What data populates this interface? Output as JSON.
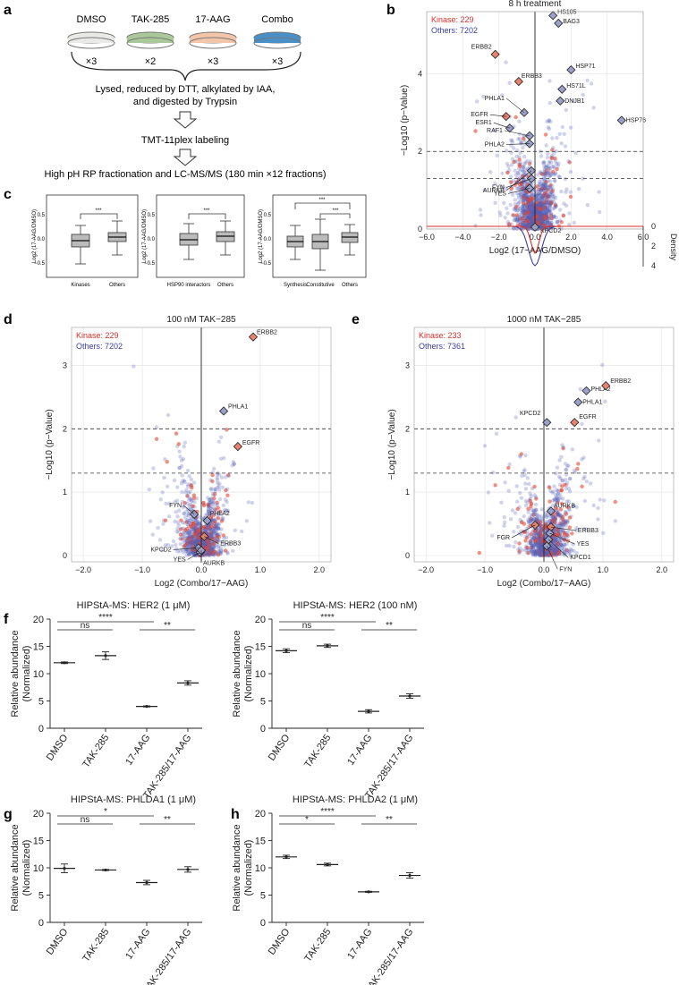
{
  "panel_labels": {
    "a": "a",
    "b": "b",
    "c": "c",
    "d": "d",
    "e": "e",
    "f": "f",
    "g": "g",
    "h": "h"
  },
  "panel_a": {
    "conditions": [
      {
        "name": "DMSO",
        "count": "×3",
        "color": "#e9e9e6"
      },
      {
        "name": "TAK-285",
        "count": "×2",
        "color": "#aac99a"
      },
      {
        "name": "17-AAG",
        "count": "×3",
        "color": "#f2c4a8"
      },
      {
        "name": "Combo",
        "count": "×3",
        "color": "#4a90c8"
      }
    ],
    "step1a": "Lysed, reduced by DTT, alkylated by IAA,",
    "step1b": "and digested by Trypsin",
    "step2": "TMT-11plex labeling",
    "step3": "High pH RP fractionation and LC-MS/MS (180 min ×12 fractions)"
  },
  "panel_c": {
    "ylabel": "Log2 (17-AAG/DMSO)",
    "plots": [
      {
        "categories": [
          "Kinases",
          "Others"
        ],
        "sig": [
          "***"
        ]
      },
      {
        "categories": [
          "HSP90 interactors",
          "Others"
        ],
        "sig": [
          "***"
        ]
      },
      {
        "categories": [
          "Synthesis",
          "Constitutive",
          "Others"
        ],
        "sig": [
          "***",
          "***"
        ]
      }
    ],
    "yticks": [
      "0.5",
      "0.0",
      "−0.5",
      "−1.0"
    ]
  },
  "chart_data": [
    {
      "id": "b",
      "type": "scatter",
      "title": "8 h treatment",
      "xlabel": "Log2 (17−AAG/DMSO)",
      "ylabel": "−Log10 (p−Value)",
      "y2label": "Density",
      "legend": [
        {
          "name": "Kinase: 229",
          "color": "#d8302a"
        },
        {
          "name": "Others: 7202",
          "color": "#3a3fa0"
        }
      ],
      "xlim": [
        -6,
        6
      ],
      "ylim": [
        0,
        5.6
      ],
      "xticks": [
        "−6.0",
        "−4.0",
        "−2.0",
        "0.0",
        "2.0",
        "4.0",
        "6.0"
      ],
      "yticks": [
        "0",
        "2",
        "4"
      ],
      "y2ticks": [
        "0",
        "2",
        "4"
      ],
      "thresholds": [
        2,
        1.3
      ],
      "labeled_points": [
        {
          "label": "HS105",
          "x": 1.0,
          "y": 5.5
        },
        {
          "label": "BAG3",
          "x": 1.3,
          "y": 5.3
        },
        {
          "label": "ERBB2",
          "x": -2.2,
          "y": 4.5
        },
        {
          "label": "HSP71",
          "x": 2.0,
          "y": 4.1
        },
        {
          "label": "HS71L",
          "x": 1.5,
          "y": 3.6
        },
        {
          "label": "DNJB1",
          "x": 1.4,
          "y": 3.3
        },
        {
          "label": "ERBB3",
          "x": -0.9,
          "y": 3.8
        },
        {
          "label": "PHLA1",
          "x": -0.6,
          "y": 3.0
        },
        {
          "label": "EGFR",
          "x": -1.6,
          "y": 2.9
        },
        {
          "label": "HSP76",
          "x": 4.8,
          "y": 2.8
        },
        {
          "label": "ESR1",
          "x": -1.4,
          "y": 2.6
        },
        {
          "label": "RAF1",
          "x": -0.3,
          "y": 2.4
        },
        {
          "label": "PHLA2",
          "x": -0.3,
          "y": 2.2
        },
        {
          "label": "AURKB",
          "x": -0.2,
          "y": 1.5
        },
        {
          "label": "FYN",
          "x": -0.2,
          "y": 1.3
        },
        {
          "label": "YES",
          "x": -0.3,
          "y": 1.05
        },
        {
          "label": "KPCD2",
          "x": 0.0,
          "y": 0.05
        }
      ]
    },
    {
      "id": "d",
      "type": "scatter",
      "title": "100 nM TAK−285",
      "xlabel": "Log2 (Combo/17−AAG)",
      "ylabel": "−Log10 (p−Value)",
      "legend": [
        {
          "name": "Kinase: 229",
          "color": "#d8302a"
        },
        {
          "name": "Others: 7202",
          "color": "#3a3fa0"
        }
      ],
      "xlim": [
        -2.2,
        2.2
      ],
      "ylim": [
        -0.1,
        3.6
      ],
      "xticks": [
        "−2.0",
        "−1.0",
        "0.0",
        "1.0",
        "2.0"
      ],
      "yticks": [
        "0",
        "1",
        "2",
        "3"
      ],
      "thresholds": [
        2,
        1.3
      ],
      "labeled_points": [
        {
          "label": "ERBB2",
          "x": 0.88,
          "y": 3.45
        },
        {
          "label": "PHLA1",
          "x": 0.38,
          "y": 2.28
        },
        {
          "label": "EGFR",
          "x": 0.62,
          "y": 1.72
        },
        {
          "label": "FYN",
          "x": -0.12,
          "y": 0.65
        },
        {
          "label": "PHLA2",
          "x": 0.1,
          "y": 0.55
        },
        {
          "label": "KPCD2",
          "x": -0.05,
          "y": 0.12
        },
        {
          "label": "ERBB3",
          "x": 0.05,
          "y": 0.3
        },
        {
          "label": "YES",
          "x": -0.02,
          "y": 0.05
        },
        {
          "label": "AURKB",
          "x": 0.0,
          "y": 0.08
        }
      ]
    },
    {
      "id": "e",
      "type": "scatter",
      "title": "1000 nM TAK−285",
      "xlabel": "Log2 (Combo/17−AAG)",
      "ylabel": "−Log10 (p−Value)",
      "legend": [
        {
          "name": "Kinase: 233",
          "color": "#d8302a"
        },
        {
          "name": "Others: 7361",
          "color": "#3a3fa0"
        }
      ],
      "xlim": [
        -2.2,
        2.2
      ],
      "ylim": [
        -0.1,
        3.6
      ],
      "xticks": [
        "−2.0",
        "−1.0",
        "0.0",
        "1.0",
        "2.0"
      ],
      "yticks": [
        "0",
        "1",
        "2",
        "3"
      ],
      "thresholds": [
        2,
        1.3
      ],
      "labeled_points": [
        {
          "label": "PHLA2",
          "x": 0.72,
          "y": 2.6
        },
        {
          "label": "ERBB2",
          "x": 1.05,
          "y": 2.68
        },
        {
          "label": "PHLA1",
          "x": 0.58,
          "y": 2.42
        },
        {
          "label": "KPCD2",
          "x": 0.05,
          "y": 2.1
        },
        {
          "label": "EGFR",
          "x": 0.52,
          "y": 2.1
        },
        {
          "label": "AURKB",
          "x": 0.12,
          "y": 0.7
        },
        {
          "label": "ERBB3",
          "x": 0.12,
          "y": 0.45
        },
        {
          "label": "FGR",
          "x": -0.15,
          "y": 0.48
        },
        {
          "label": "YES",
          "x": 0.1,
          "y": 0.35
        },
        {
          "label": "KPCD1",
          "x": 0.08,
          "y": 0.25
        },
        {
          "label": "FYN",
          "x": 0.05,
          "y": 0.15
        }
      ]
    },
    {
      "id": "f1",
      "type": "scatter",
      "title": "HIPStA-MS: HER2 (1 μM)",
      "ylabel": "Relative abundance (Normalized)",
      "categories": [
        "DMSO",
        "TAK-285",
        "17-AAG",
        "TAK-285/17-AAG"
      ],
      "values": [
        12.0,
        13.3,
        4.0,
        8.3
      ],
      "errors": [
        0.15,
        0.7,
        0.1,
        0.4
      ],
      "ylim": [
        0,
        20
      ],
      "yticks": [
        "0",
        "5",
        "10",
        "15",
        "20"
      ],
      "sig": [
        {
          "a": 0,
          "b": 1,
          "t": "ns"
        },
        {
          "a": 0,
          "b": 2,
          "t": "****"
        },
        {
          "a": 2,
          "b": 3,
          "t": "**"
        }
      ]
    },
    {
      "id": "f2",
      "type": "scatter",
      "title": "HIPStA-MS: HER2 (100 nM)",
      "ylabel": "Relative abundance (Normalized)",
      "categories": [
        "DMSO",
        "TAK-285",
        "17-AAG",
        "TAK-285/17-AAG"
      ],
      "values": [
        14.2,
        15.1,
        3.1,
        5.9
      ],
      "errors": [
        0.35,
        0.3,
        0.3,
        0.4
      ],
      "ylim": [
        0,
        20
      ],
      "yticks": [
        "0",
        "5",
        "10",
        "15",
        "20"
      ],
      "sig": [
        {
          "a": 0,
          "b": 1,
          "t": "ns"
        },
        {
          "a": 0,
          "b": 2,
          "t": "****"
        },
        {
          "a": 2,
          "b": 3,
          "t": "**"
        }
      ]
    },
    {
      "id": "g",
      "type": "scatter",
      "title": "HIPStA-MS: PHLDA1 (1 μM)",
      "ylabel": "Relative abundance (Normalized)",
      "categories": [
        "DMSO",
        "TAK-285",
        "17-AAG",
        "TAK-285/17-AAG"
      ],
      "values": [
        9.9,
        9.6,
        7.3,
        9.7
      ],
      "errors": [
        0.8,
        0.1,
        0.4,
        0.5
      ],
      "ylim": [
        0,
        20
      ],
      "yticks": [
        "0",
        "5",
        "10",
        "15",
        "20"
      ],
      "sig": [
        {
          "a": 0,
          "b": 1,
          "t": "ns"
        },
        {
          "a": 0,
          "b": 2,
          "t": "*"
        },
        {
          "a": 2,
          "b": 3,
          "t": "**"
        }
      ]
    },
    {
      "id": "h",
      "type": "scatter",
      "title": "HIPStA-MS: PHLDA2 (1 μM)",
      "ylabel": "Relative abundance (Normalized)",
      "categories": [
        "DMSO",
        "TAK-285",
        "17-AAG",
        "TAK-285/17-AAG"
      ],
      "values": [
        12.0,
        10.6,
        5.6,
        8.6
      ],
      "errors": [
        0.3,
        0.25,
        0.1,
        0.5
      ],
      "ylim": [
        0,
        20
      ],
      "yticks": [
        "0",
        "5",
        "10",
        "15",
        "20"
      ],
      "sig": [
        {
          "a": 0,
          "b": 1,
          "t": "*"
        },
        {
          "a": 0,
          "b": 2,
          "t": "****"
        },
        {
          "a": 2,
          "b": 3,
          "t": "**"
        }
      ]
    }
  ]
}
